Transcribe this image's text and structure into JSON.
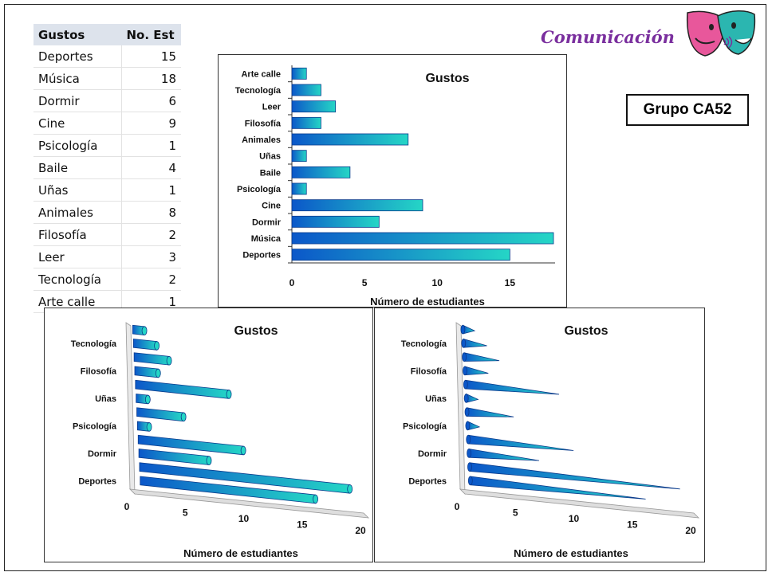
{
  "table": {
    "headers": [
      "Gustos",
      "No. Est"
    ],
    "rows": [
      [
        "Deportes",
        "15"
      ],
      [
        "Música",
        "18"
      ],
      [
        "Dormir",
        "6"
      ],
      [
        "Cine",
        "9"
      ],
      [
        "Psicología",
        "1"
      ],
      [
        "Baile",
        "4"
      ],
      [
        "Uñas",
        "1"
      ],
      [
        "Animales",
        "8"
      ],
      [
        "Filosofía",
        "2"
      ],
      [
        "Leer",
        "3"
      ],
      [
        "Tecnología",
        "2"
      ],
      [
        "Arte calle",
        "1"
      ]
    ]
  },
  "brand": {
    "title": "Comunicación",
    "logo_icon": "theatre-masks-icon"
  },
  "group_label": "Grupo CA52",
  "colors": {
    "bar_dark": "#0b57c9",
    "bar_light": "#25d6c6",
    "brand": "#7a2f9e"
  },
  "chart_data": [
    {
      "type": "bar",
      "orientation": "horizontal",
      "style": "flat-gradient",
      "title": "Gustos",
      "xlabel": "Número de estudiantes",
      "ylabel": "",
      "categories": [
        "Deportes",
        "Música",
        "Dormir",
        "Cine",
        "Psicología",
        "Baile",
        "Uñas",
        "Animales",
        "Filosofía",
        "Leer",
        "Tecnología",
        "Arte calle"
      ],
      "values": [
        15,
        18,
        6,
        9,
        1,
        4,
        1,
        8,
        2,
        3,
        2,
        1
      ],
      "xlim": [
        0,
        18
      ],
      "xticks": [
        0,
        5,
        10,
        15
      ],
      "grid": false,
      "legend": "none"
    },
    {
      "type": "bar",
      "orientation": "horizontal",
      "style": "3d-cylinder",
      "title": "Gustos",
      "xlabel": "Número de estudiantes",
      "ylabel": "",
      "categories": [
        "Deportes",
        "Música",
        "Dormir",
        "Cine",
        "Psicología",
        "Baile",
        "Uñas",
        "Animales",
        "Filosofía",
        "Leer",
        "Tecnología",
        "Arte calle"
      ],
      "visible_category_labels": [
        "Deportes",
        "Dormir",
        "Psicología",
        "Uñas",
        "Filosofía",
        "Tecnología"
      ],
      "values": [
        15,
        18,
        6,
        9,
        1,
        4,
        1,
        8,
        2,
        3,
        2,
        1
      ],
      "xlim": [
        0,
        20
      ],
      "xticks": [
        0,
        5,
        10,
        15,
        20
      ],
      "grid": false,
      "legend": "none"
    },
    {
      "type": "bar",
      "orientation": "horizontal",
      "style": "3d-cone",
      "title": "Gustos",
      "xlabel": "Número de estudiantes",
      "ylabel": "",
      "categories": [
        "Deportes",
        "Música",
        "Dormir",
        "Cine",
        "Psicología",
        "Baile",
        "Uñas",
        "Animales",
        "Filosofía",
        "Leer",
        "Tecnología",
        "Arte calle"
      ],
      "visible_category_labels": [
        "Deportes",
        "Dormir",
        "Psicología",
        "Uñas",
        "Filosofía",
        "Tecnología"
      ],
      "values": [
        15,
        18,
        6,
        9,
        1,
        4,
        1,
        8,
        2,
        3,
        2,
        1
      ],
      "xlim": [
        0,
        20
      ],
      "xticks": [
        0,
        5,
        10,
        15,
        20
      ],
      "grid": false,
      "legend": "none"
    }
  ]
}
